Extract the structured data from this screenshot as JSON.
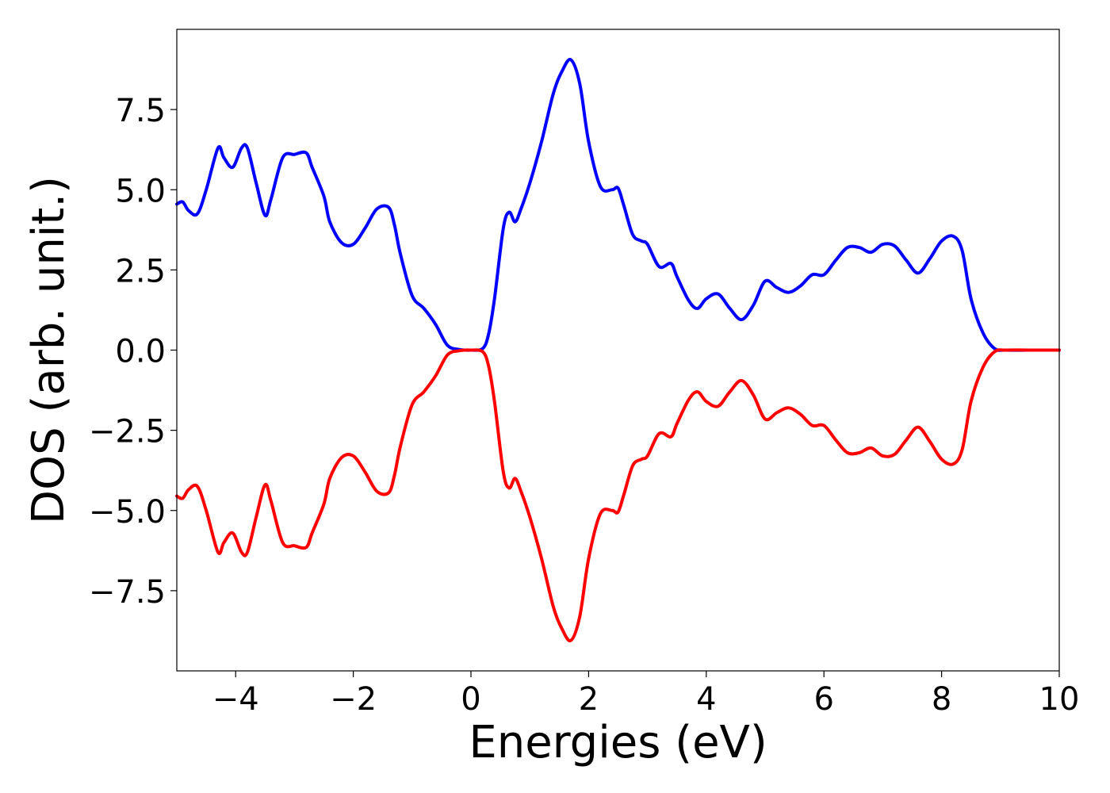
{
  "chart_data": {
    "type": "line",
    "title": "",
    "xlabel": "Energies (eV)",
    "ylabel": "DOS (arb. unit.)",
    "xlim": [
      -5,
      10
    ],
    "ylim": [
      -10,
      10
    ],
    "xticks": [
      -4,
      -2,
      0,
      2,
      4,
      6,
      8,
      10
    ],
    "xtick_labels": [
      "−4",
      "−2",
      "0",
      "2",
      "4",
      "6",
      "8",
      "10"
    ],
    "yticks": [
      -7.5,
      -5.0,
      -2.5,
      0.0,
      2.5,
      5.0,
      7.5
    ],
    "ytick_labels": [
      "−7.5",
      "−5.0",
      "−2.5",
      "0.0",
      "2.5",
      "5.0",
      "7.5"
    ],
    "grid": false,
    "legend": "none",
    "series": [
      {
        "color": "#0000ff",
        "x": [
          -5.0,
          -4.9,
          -4.8,
          -4.65,
          -4.5,
          -4.3,
          -4.2,
          -4.05,
          -3.9,
          -3.8,
          -3.65,
          -3.5,
          -3.4,
          -3.2,
          -3.0,
          -2.8,
          -2.7,
          -2.5,
          -2.4,
          -2.2,
          -2.0,
          -1.8,
          -1.6,
          -1.4,
          -1.3,
          -1.2,
          -1.0,
          -0.8,
          -0.6,
          -0.4,
          -0.2,
          0.0,
          0.2,
          0.3,
          0.4,
          0.55,
          0.65,
          0.75,
          0.85,
          1.0,
          1.2,
          1.4,
          1.55,
          1.7,
          1.85,
          2.0,
          2.2,
          2.4,
          2.5,
          2.6,
          2.75,
          2.9,
          3.0,
          3.2,
          3.4,
          3.5,
          3.7,
          3.85,
          4.0,
          4.2,
          4.4,
          4.6,
          4.8,
          5.0,
          5.2,
          5.4,
          5.6,
          5.8,
          6.0,
          6.2,
          6.4,
          6.6,
          6.8,
          7.0,
          7.2,
          7.4,
          7.6,
          7.8,
          8.0,
          8.2,
          8.35,
          8.5,
          8.7,
          8.9,
          9.1,
          9.5,
          10.0
        ],
        "values": [
          4.55,
          4.62,
          4.35,
          4.25,
          5.0,
          6.3,
          6.0,
          5.7,
          6.3,
          6.3,
          5.2,
          4.2,
          4.7,
          6.0,
          6.1,
          6.15,
          5.7,
          4.8,
          4.0,
          3.35,
          3.3,
          3.8,
          4.4,
          4.45,
          3.9,
          3.0,
          1.7,
          1.3,
          0.8,
          0.15,
          0.02,
          0.0,
          0.05,
          0.5,
          1.6,
          3.8,
          4.3,
          4.0,
          4.4,
          5.2,
          6.5,
          8.0,
          8.7,
          9.05,
          8.3,
          6.5,
          5.1,
          5.0,
          5.05,
          4.5,
          3.6,
          3.4,
          3.3,
          2.6,
          2.7,
          2.3,
          1.55,
          1.3,
          1.6,
          1.75,
          1.3,
          0.95,
          1.4,
          2.15,
          1.95,
          1.8,
          2.0,
          2.35,
          2.35,
          2.8,
          3.2,
          3.2,
          3.05,
          3.3,
          3.25,
          2.8,
          2.4,
          2.85,
          3.4,
          3.55,
          3.1,
          1.6,
          0.55,
          0.05,
          0.0,
          0.0,
          0.0
        ]
      },
      {
        "color": "#ff0000",
        "x": [
          -5.0,
          -4.9,
          -4.8,
          -4.65,
          -4.5,
          -4.3,
          -4.2,
          -4.05,
          -3.9,
          -3.8,
          -3.65,
          -3.5,
          -3.4,
          -3.2,
          -3.0,
          -2.8,
          -2.7,
          -2.5,
          -2.4,
          -2.2,
          -2.0,
          -1.8,
          -1.6,
          -1.4,
          -1.3,
          -1.2,
          -1.0,
          -0.8,
          -0.6,
          -0.4,
          -0.2,
          0.0,
          0.2,
          0.3,
          0.4,
          0.55,
          0.65,
          0.75,
          0.85,
          1.0,
          1.2,
          1.4,
          1.55,
          1.7,
          1.85,
          2.0,
          2.2,
          2.4,
          2.5,
          2.6,
          2.75,
          2.9,
          3.0,
          3.2,
          3.4,
          3.5,
          3.7,
          3.85,
          4.0,
          4.2,
          4.4,
          4.6,
          4.8,
          5.0,
          5.2,
          5.4,
          5.6,
          5.8,
          6.0,
          6.2,
          6.4,
          6.6,
          6.8,
          7.0,
          7.2,
          7.4,
          7.6,
          7.8,
          8.0,
          8.2,
          8.35,
          8.5,
          8.7,
          8.9,
          9.1,
          9.5,
          10.0
        ],
        "values": [
          -4.55,
          -4.62,
          -4.35,
          -4.25,
          -5.0,
          -6.3,
          -6.0,
          -5.7,
          -6.3,
          -6.3,
          -5.2,
          -4.2,
          -4.7,
          -6.0,
          -6.1,
          -6.15,
          -5.7,
          -4.8,
          -4.0,
          -3.35,
          -3.3,
          -3.8,
          -4.4,
          -4.45,
          -3.9,
          -3.0,
          -1.7,
          -1.3,
          -0.8,
          -0.15,
          -0.02,
          0.0,
          -0.05,
          -0.5,
          -1.6,
          -3.8,
          -4.3,
          -4.0,
          -4.4,
          -5.2,
          -6.5,
          -8.0,
          -8.7,
          -9.05,
          -8.3,
          -6.5,
          -5.1,
          -5.0,
          -5.05,
          -4.5,
          -3.6,
          -3.4,
          -3.3,
          -2.6,
          -2.7,
          -2.3,
          -1.55,
          -1.3,
          -1.6,
          -1.75,
          -1.3,
          -0.95,
          -1.4,
          -2.15,
          -1.95,
          -1.8,
          -2.0,
          -2.35,
          -2.35,
          -2.8,
          -3.2,
          -3.2,
          -3.05,
          -3.3,
          -3.25,
          -2.8,
          -2.4,
          -2.85,
          -3.4,
          -3.55,
          -3.1,
          -1.6,
          -0.55,
          -0.05,
          0.0,
          0.0,
          0.0
        ]
      }
    ]
  }
}
